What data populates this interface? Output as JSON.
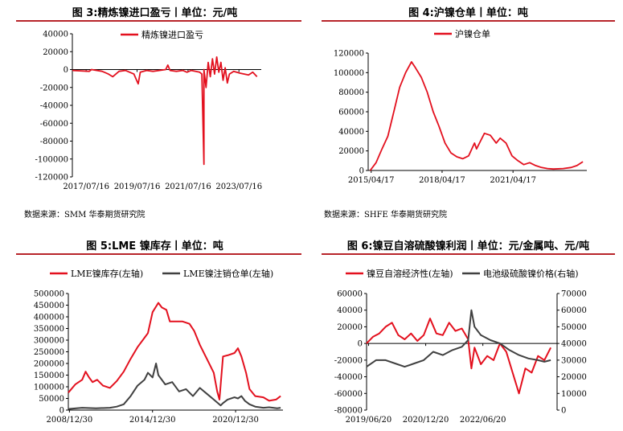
{
  "panels": [
    {
      "title": "图 3:精炼镍进口盈亏丨单位：元/吨",
      "source": "数据来源：SMM 华泰期货研究院"
    },
    {
      "title": "图 4:沪镍仓单丨单位：吨",
      "source": "数据来源：SHFE 华泰期货研究院"
    },
    {
      "title": "图 5:LME 镍库存丨单位：吨",
      "source": ""
    },
    {
      "title": "图 6:镍豆自溶硫酸镍利润丨单位：元/金属吨、元/吨",
      "source": ""
    }
  ],
  "colors": {
    "red": "#e3101e",
    "dark": "#404040",
    "rule": "#b8242a"
  },
  "chart_data": [
    {
      "type": "line",
      "title": "图 3:精炼镍进口盈亏丨单位：元/吨",
      "x_ticks": [
        "2017/07/16",
        "2019/07/16",
        "2021/07/16",
        "2023/07/16"
      ],
      "y_ticks": [
        "40000",
        "20000",
        "0",
        "-20000",
        "-40000",
        "-60000",
        "-80000",
        "-100000",
        "-120000"
      ],
      "ylim": [
        -120000,
        40000
      ],
      "xlim": [
        "2017/01",
        "2024/06"
      ],
      "series": [
        {
          "name": "精炼镍进口盈亏",
          "color": "#e3101e",
          "points": [
            [
              "2017/01",
              -1000
            ],
            [
              "2017/09",
              -2000
            ],
            [
              "2017/10",
              0
            ],
            [
              "2018/03",
              -2000
            ],
            [
              "2018/06",
              -5000
            ],
            [
              "2018/08",
              -8000
            ],
            [
              "2018/11",
              -2000
            ],
            [
              "2019/02",
              -1000
            ],
            [
              "2019/06",
              -5000
            ],
            [
              "2019/08",
              -16000
            ],
            [
              "2019/09",
              -3000
            ],
            [
              "2019/12",
              -1000
            ],
            [
              "2020/03",
              -2000
            ],
            [
              "2020/06",
              -1000
            ],
            [
              "2020/09",
              0
            ],
            [
              "2020/10",
              5000
            ],
            [
              "2020/11",
              -1000
            ],
            [
              "2021/02",
              -2000
            ],
            [
              "2021/05",
              -1000
            ],
            [
              "2021/07",
              -3000
            ],
            [
              "2021/09",
              -1000
            ],
            [
              "2022/01",
              -3000
            ],
            [
              "2022/02",
              -5000
            ],
            [
              "2022/03",
              -106000
            ],
            [
              "2022/03",
              0
            ],
            [
              "2022/04",
              -20000
            ],
            [
              "2022/05",
              8000
            ],
            [
              "2022/06",
              -8000
            ],
            [
              "2022/07",
              12000
            ],
            [
              "2022/08",
              -5000
            ],
            [
              "2022/09",
              14000
            ],
            [
              "2022/10",
              -3000
            ],
            [
              "2022/11",
              8000
            ],
            [
              "2022/12",
              -12000
            ],
            [
              "2023/01",
              2000
            ],
            [
              "2023/02",
              -15000
            ],
            [
              "2023/03",
              -5000
            ],
            [
              "2023/05",
              -2000
            ],
            [
              "2023/08",
              -4000
            ],
            [
              "2023/10",
              -5000
            ],
            [
              "2023/12",
              -6000
            ],
            [
              "2024/02",
              -3000
            ],
            [
              "2024/04",
              -8000
            ]
          ]
        }
      ]
    },
    {
      "type": "line",
      "title": "图 4:沪镍仓单丨单位：吨",
      "x_ticks": [
        "2015/04/17",
        "2018/04/17",
        "2021/04/17"
      ],
      "y_ticks": [
        "0",
        "20000",
        "40000",
        "60000",
        "80000",
        "100000",
        "120000"
      ],
      "ylim": [
        0,
        120000
      ],
      "xlim": [
        "2015/03",
        "2024/06"
      ],
      "series": [
        {
          "name": "沪镍仓单",
          "color": "#e3101e",
          "points": [
            [
              "2015/04",
              0
            ],
            [
              "2015/07",
              8000
            ],
            [
              "2015/10",
              22000
            ],
            [
              "2016/01",
              35000
            ],
            [
              "2016/04",
              60000
            ],
            [
              "2016/07",
              85000
            ],
            [
              "2016/10",
              100000
            ],
            [
              "2017/01",
              111000
            ],
            [
              "2017/03",
              105000
            ],
            [
              "2017/06",
              95000
            ],
            [
              "2017/09",
              80000
            ],
            [
              "2017/12",
              60000
            ],
            [
              "2018/03",
              45000
            ],
            [
              "2018/06",
              28000
            ],
            [
              "2018/09",
              18000
            ],
            [
              "2018/12",
              14000
            ],
            [
              "2019/03",
              12000
            ],
            [
              "2019/06",
              15000
            ],
            [
              "2019/09",
              28000
            ],
            [
              "2019/10",
              22000
            ],
            [
              "2019/12",
              30000
            ],
            [
              "2020/02",
              38000
            ],
            [
              "2020/05",
              36000
            ],
            [
              "2020/08",
              28000
            ],
            [
              "2020/10",
              33000
            ],
            [
              "2021/01",
              28000
            ],
            [
              "2021/04",
              15000
            ],
            [
              "2021/07",
              10000
            ],
            [
              "2021/10",
              6000
            ],
            [
              "2022/01",
              8000
            ],
            [
              "2022/04",
              5000
            ],
            [
              "2022/07",
              3000
            ],
            [
              "2022/10",
              2000
            ],
            [
              "2023/01",
              1500
            ],
            [
              "2023/06",
              2000
            ],
            [
              "2023/10",
              3000
            ],
            [
              "2024/01",
              5000
            ],
            [
              "2024/04",
              9000
            ]
          ]
        }
      ]
    },
    {
      "type": "line",
      "title": "图 5:LME 镍库存丨单位：吨",
      "x_ticks": [
        "2008/12/30",
        "2014/12/30",
        "2020/12/30"
      ],
      "y_ticks": [
        "0",
        "50000",
        "100000",
        "150000",
        "200000",
        "250000",
        "300000",
        "350000",
        "400000",
        "450000",
        "500000"
      ],
      "ylim": [
        0,
        500000
      ],
      "xlim": [
        "2008/12",
        "2024/06"
      ],
      "series": [
        {
          "name": "LME镍库存(左轴)",
          "color": "#e3101e",
          "points": [
            [
              "2008/12",
              75000
            ],
            [
              "2009/06",
              110000
            ],
            [
              "2009/12",
              130000
            ],
            [
              "2010/03",
              165000
            ],
            [
              "2010/06",
              140000
            ],
            [
              "2010/09",
              120000
            ],
            [
              "2011/01",
              130000
            ],
            [
              "2011/06",
              105000
            ],
            [
              "2011/12",
              95000
            ],
            [
              "2012/06",
              125000
            ],
            [
              "2012/12",
              165000
            ],
            [
              "2013/06",
              220000
            ],
            [
              "2013/12",
              270000
            ],
            [
              "2014/06",
              310000
            ],
            [
              "2014/09",
              330000
            ],
            [
              "2015/01",
              420000
            ],
            [
              "2015/06",
              460000
            ],
            [
              "2015/09",
              440000
            ],
            [
              "2016/01",
              430000
            ],
            [
              "2016/04",
              380000
            ],
            [
              "2016/10",
              380000
            ],
            [
              "2017/03",
              380000
            ],
            [
              "2017/09",
              370000
            ],
            [
              "2018/01",
              340000
            ],
            [
              "2018/06",
              280000
            ],
            [
              "2018/12",
              220000
            ],
            [
              "2019/06",
              160000
            ],
            [
              "2019/09",
              80000
            ],
            [
              "2019/11",
              45000
            ],
            [
              "2020/02",
              230000
            ],
            [
              "2020/06",
              235000
            ],
            [
              "2020/12",
              245000
            ],
            [
              "2021/03",
              265000
            ],
            [
              "2021/06",
              230000
            ],
            [
              "2021/10",
              160000
            ],
            [
              "2022/01",
              90000
            ],
            [
              "2022/06",
              60000
            ],
            [
              "2023/01",
              55000
            ],
            [
              "2023/06",
              40000
            ],
            [
              "2023/12",
              45000
            ],
            [
              "2024/04",
              60000
            ]
          ]
        },
        {
          "name": "LME镍注销仓单(左轴)",
          "color": "#404040",
          "points": [
            [
              "2008/12",
              5000
            ],
            [
              "2009/12",
              10000
            ],
            [
              "2010/12",
              8000
            ],
            [
              "2011/12",
              10000
            ],
            [
              "2012/06",
              15000
            ],
            [
              "2012/12",
              25000
            ],
            [
              "2013/06",
              60000
            ],
            [
              "2013/12",
              105000
            ],
            [
              "2014/06",
              130000
            ],
            [
              "2014/09",
              160000
            ],
            [
              "2015/01",
              140000
            ],
            [
              "2015/04",
              200000
            ],
            [
              "2015/06",
              150000
            ],
            [
              "2015/12",
              110000
            ],
            [
              "2016/06",
              120000
            ],
            [
              "2016/12",
              80000
            ],
            [
              "2017/06",
              90000
            ],
            [
              "2017/12",
              60000
            ],
            [
              "2018/06",
              95000
            ],
            [
              "2018/12",
              70000
            ],
            [
              "2019/06",
              45000
            ],
            [
              "2019/12",
              20000
            ],
            [
              "2020/02",
              30000
            ],
            [
              "2020/06",
              45000
            ],
            [
              "2020/12",
              55000
            ],
            [
              "2021/03",
              50000
            ],
            [
              "2021/06",
              60000
            ],
            [
              "2021/09",
              40000
            ],
            [
              "2022/01",
              25000
            ],
            [
              "2022/06",
              15000
            ],
            [
              "2023/01",
              10000
            ],
            [
              "2023/06",
              12000
            ],
            [
              "2024/01",
              8000
            ],
            [
              "2024/04",
              10000
            ]
          ]
        }
      ]
    },
    {
      "type": "line",
      "title": "图 6:镍豆自溶硫酸镍利润丨单位：元/金属吨、元/吨",
      "x_ticks": [
        "2019/06/20",
        "2020/12/20",
        "2022/06/20"
      ],
      "y_ticks_left": [
        "60000",
        "40000",
        "20000",
        "0",
        "-20000",
        "-40000",
        "-60000",
        "-80000"
      ],
      "y_ticks_right": [
        "70000",
        "60000",
        "50000",
        "40000",
        "30000",
        "20000",
        "10000",
        "0"
      ],
      "ylim": [
        -80000,
        60000
      ],
      "ylim_right": [
        0,
        70000
      ],
      "xlim": [
        "2019/06",
        "2024/06"
      ],
      "series": [
        {
          "name": "镍豆自溶经济性(左轴)",
          "axis": "left",
          "color": "#e3101e",
          "points": [
            [
              "2019/06",
              0
            ],
            [
              "2019/08",
              8000
            ],
            [
              "2019/10",
              12000
            ],
            [
              "2019/12",
              20000
            ],
            [
              "2020/02",
              25000
            ],
            [
              "2020/04",
              10000
            ],
            [
              "2020/06",
              5000
            ],
            [
              "2020/08",
              12000
            ],
            [
              "2020/10",
              3000
            ],
            [
              "2020/12",
              10000
            ],
            [
              "2021/02",
              30000
            ],
            [
              "2021/04",
              12000
            ],
            [
              "2021/06",
              10000
            ],
            [
              "2021/08",
              25000
            ],
            [
              "2021/10",
              15000
            ],
            [
              "2021/12",
              18000
            ],
            [
              "2022/02",
              5000
            ],
            [
              "2022/03",
              -30000
            ],
            [
              "2022/04",
              -5000
            ],
            [
              "2022/06",
              -25000
            ],
            [
              "2022/08",
              -15000
            ],
            [
              "2022/10",
              -20000
            ],
            [
              "2022/12",
              0
            ],
            [
              "2023/02",
              -10000
            ],
            [
              "2023/04",
              -35000
            ],
            [
              "2023/06",
              -60000
            ],
            [
              "2023/08",
              -30000
            ],
            [
              "2023/10",
              -35000
            ],
            [
              "2023/12",
              -15000
            ],
            [
              "2024/02",
              -20000
            ],
            [
              "2024/04",
              -5000
            ]
          ]
        },
        {
          "name": "电池级硫酸镍价格(右轴)",
          "axis": "right",
          "color": "#404040",
          "points": [
            [
              "2019/06",
              26000
            ],
            [
              "2019/09",
              30000
            ],
            [
              "2019/12",
              30000
            ],
            [
              "2020/03",
              28000
            ],
            [
              "2020/06",
              26000
            ],
            [
              "2020/09",
              28000
            ],
            [
              "2020/12",
              30000
            ],
            [
              "2021/03",
              35000
            ],
            [
              "2021/06",
              33000
            ],
            [
              "2021/09",
              36000
            ],
            [
              "2021/12",
              38000
            ],
            [
              "2022/02",
              42000
            ],
            [
              "2022/03",
              60000
            ],
            [
              "2022/04",
              50000
            ],
            [
              "2022/06",
              45000
            ],
            [
              "2022/09",
              42000
            ],
            [
              "2022/12",
              40000
            ],
            [
              "2023/03",
              36000
            ],
            [
              "2023/06",
              33000
            ],
            [
              "2023/09",
              31000
            ],
            [
              "2023/12",
              30000
            ],
            [
              "2024/02",
              29000
            ],
            [
              "2024/04",
              30000
            ]
          ]
        }
      ]
    }
  ]
}
